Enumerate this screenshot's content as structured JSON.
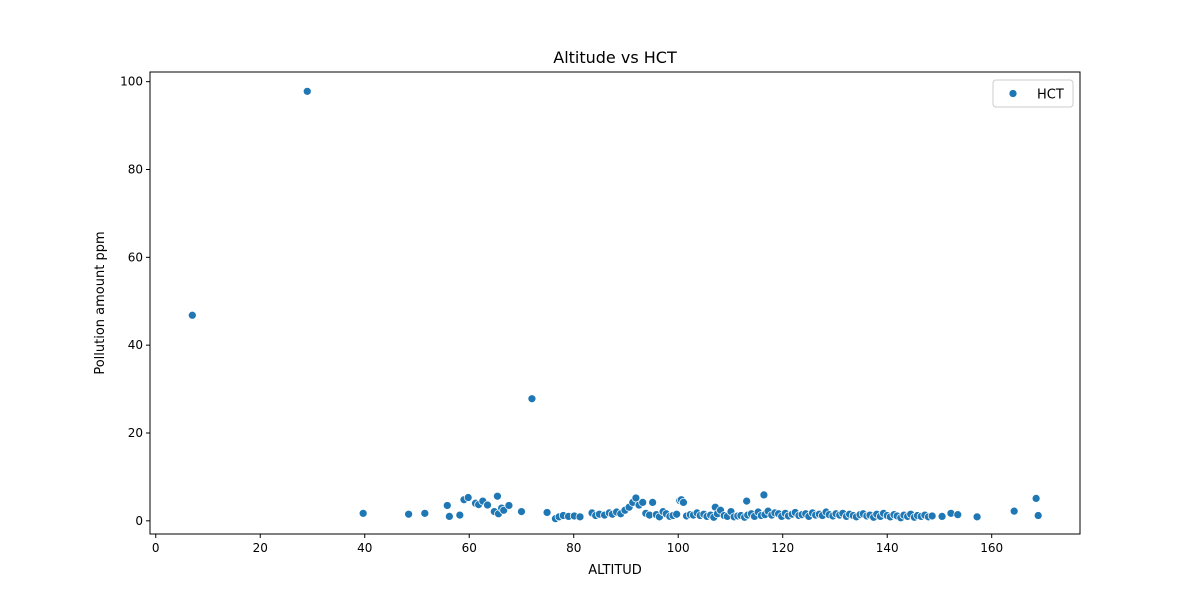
{
  "chart_data": {
    "type": "scatter",
    "title": "Altitude vs HCT",
    "xlabel": "ALTITUD",
    "ylabel": "Pollution amount ppm",
    "xlim": [
      -1.1,
      176.9
    ],
    "ylim": [
      -3.0,
      102.2
    ],
    "xticks": [
      0,
      20,
      40,
      60,
      80,
      100,
      120,
      140,
      160
    ],
    "yticks": [
      0,
      20,
      40,
      60,
      80,
      100
    ],
    "grid": false,
    "legend_position": "top-right",
    "series": [
      {
        "name": "HCT",
        "color": "#1f77b4",
        "x": [
          7,
          29,
          72,
          39.7,
          48.4,
          51.5,
          55.8,
          56.2,
          58.2,
          59,
          59.8,
          61.2,
          61.8,
          62.6,
          63.5,
          64.8,
          65.4,
          65.6,
          66.2,
          66.6,
          67.6,
          70,
          74.9,
          76.5,
          77.2,
          78,
          79,
          80.1,
          81.2,
          83.5,
          84.2,
          84.9,
          85.9,
          86.8,
          87.4,
          88.2,
          89,
          89.8,
          90.6,
          91.3,
          91.9,
          92.5,
          93.2,
          93.8,
          94.5,
          95.1,
          95.8,
          96.4,
          97.1,
          97.7,
          98.4,
          99,
          99.7,
          100.3,
          100.6,
          101,
          101.6,
          102.3,
          102.9,
          103.6,
          104.2,
          104.9,
          105.5,
          106.2,
          106.8,
          107.1,
          107.5,
          108.1,
          108.8,
          109.4,
          110.1,
          110.7,
          111.4,
          112,
          112.7,
          113.1,
          113.3,
          114,
          114.6,
          115.3,
          115.9,
          116.4,
          116.6,
          117.2,
          117.9,
          118.5,
          119.2,
          119.8,
          120.5,
          121.1,
          121.8,
          122.4,
          123.1,
          123.7,
          124.4,
          125,
          125.7,
          126.3,
          127,
          127.6,
          128.3,
          128.9,
          129.6,
          130.2,
          130.9,
          131.5,
          132.2,
          132.8,
          133.5,
          134.1,
          134.8,
          135.4,
          136.1,
          136.7,
          137.4,
          138,
          138.7,
          139.3,
          140,
          140.6,
          141.3,
          141.9,
          142.6,
          143.2,
          143.9,
          144.5,
          145.2,
          145.8,
          146.5,
          147.2,
          147.9,
          148.6,
          150.5,
          152.2,
          153.5,
          157.2,
          164.3,
          168.5,
          168.9
        ],
        "y": [
          46.8,
          97.8,
          27.8,
          1.7,
          1.5,
          1.7,
          3.5,
          1.0,
          1.3,
          4.8,
          5.3,
          4.0,
          3.7,
          4.5,
          3.6,
          2.1,
          5.6,
          1.6,
          2.9,
          2.4,
          3.5,
          2.1,
          1.9,
          0.5,
          0.9,
          1.2,
          1.0,
          1.1,
          0.9,
          1.8,
          1.2,
          1.5,
          1.3,
          1.8,
          1.5,
          2.0,
          1.6,
          2.4,
          3.1,
          4.2,
          5.2,
          3.6,
          4.2,
          1.7,
          1.3,
          4.2,
          1.4,
          0.9,
          2.1,
          1.6,
          1.0,
          1.2,
          1.5,
          4.6,
          4.8,
          4.2,
          1.1,
          1.4,
          1.3,
          1.8,
          1.2,
          1.5,
          1.0,
          1.3,
          0.8,
          3.1,
          1.6,
          2.4,
          1.2,
          1.0,
          2.1,
          0.9,
          1.1,
          1.2,
          0.8,
          4.5,
          1.3,
          1.6,
          1.0,
          2.0,
          1.2,
          5.9,
          1.4,
          2.2,
          1.3,
          1.8,
          1.6,
          1.0,
          1.7,
          1.1,
          1.5,
          1.9,
          1.2,
          1.4,
          1.6,
          1.0,
          1.8,
          1.3,
          1.5,
          1.2,
          2.0,
          1.4,
          1.1,
          1.6,
          1.3,
          1.7,
          1.0,
          1.5,
          1.2,
          0.9,
          1.4,
          1.6,
          1.1,
          1.3,
          0.8,
          1.5,
          1.0,
          1.7,
          1.2,
          0.9,
          1.4,
          1.1,
          0.7,
          1.3,
          1.0,
          1.5,
          0.8,
          1.2,
          1.0,
          1.3,
          0.9,
          1.1,
          1.0,
          1.7,
          1.4,
          0.9,
          2.2,
          5.1,
          1.2
        ]
      }
    ]
  }
}
